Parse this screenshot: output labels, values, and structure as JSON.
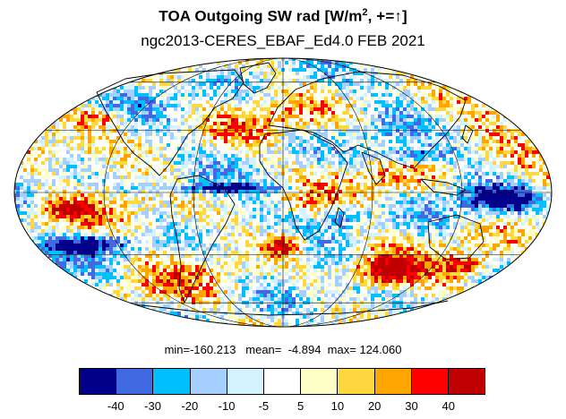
{
  "title": {
    "main": "TOA Outgoing SW rad [W/m",
    "sup": "2",
    "tail": ", +=↑]"
  },
  "subtitle": "ngc2013-CERES_EBAF_Ed4.0 FEB 2021",
  "stats": {
    "text": "min=-160.213   mean=  -4.894  max= 124.060"
  },
  "colorbar": {
    "colors": [
      "#00008b",
      "#4169e1",
      "#00bfff",
      "#a4cfff",
      "#d4f2ff",
      "#ffffff",
      "#ffffc8",
      "#ffd840",
      "#ffa500",
      "#ff0000",
      "#c00000"
    ],
    "labels": [
      "-40",
      "-30",
      "-20",
      "-10",
      "-5",
      "5",
      "10",
      "20",
      "30",
      "40"
    ]
  },
  "map": {
    "projection": "Mollweide",
    "ocean_color": "#ffffff",
    "coastline_color": "#000000"
  }
}
